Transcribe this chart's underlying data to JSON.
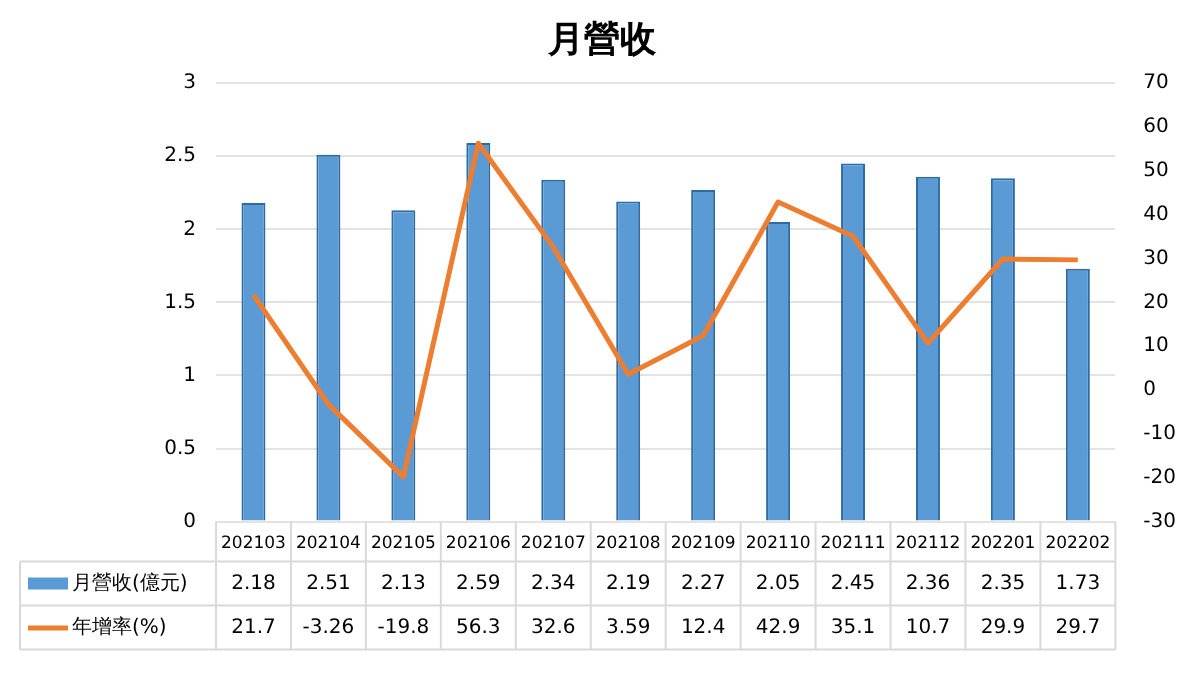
{
  "chart_data": {
    "type": "bar",
    "title": "月營收",
    "categories": [
      "202103",
      "202104",
      "202105",
      "202106",
      "202107",
      "202108",
      "202109",
      "202110",
      "202111",
      "202112",
      "202201",
      "202202"
    ],
    "series": [
      {
        "name": "月營收(億元)",
        "color": "#5b9bd5",
        "values": [
          2.18,
          2.51,
          2.13,
          2.59,
          2.34,
          2.19,
          2.27,
          2.05,
          2.45,
          2.36,
          2.35,
          1.73
        ]
      },
      {
        "name": "年增率(%)",
        "type": "line",
        "axis": "y2",
        "color": "#ed7d31",
        "values": [
          21.7,
          -3.26,
          -19.8,
          56.3,
          32.6,
          3.59,
          12.4,
          42.9,
          35.1,
          10.7,
          29.9,
          29.7
        ]
      }
    ],
    "ylim": [
      0,
      3
    ],
    "yticks": [
      0,
      0.5,
      1,
      1.5,
      2,
      2.5,
      3
    ],
    "y2lim": [
      -30,
      70
    ],
    "y2ticks": [
      -30,
      -20,
      -10,
      0,
      10,
      20,
      30,
      40,
      50,
      60,
      70
    ],
    "grid": "y",
    "legend": "bottom",
    "data_labels": true,
    "marker": "none"
  }
}
